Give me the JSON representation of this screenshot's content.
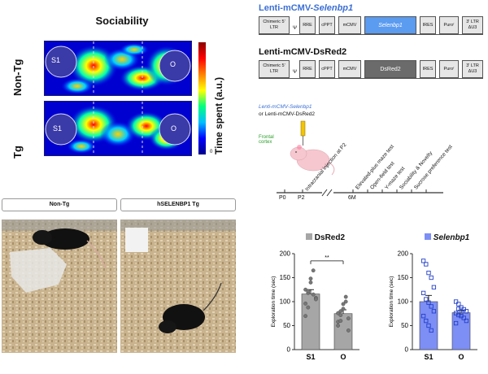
{
  "heatmap": {
    "title": "Sociability",
    "rows": [
      {
        "label": "Non-Tg",
        "left_zone": "S1",
        "right_zone": "O"
      },
      {
        "label": "Tg",
        "left_zone": "S1",
        "right_zone": "O"
      }
    ],
    "colorbar_label": "Time spent (a.u.)",
    "colorbar_min": "0",
    "colors": [
      "#00008b",
      "#0000ff",
      "#00bfff",
      "#00ff80",
      "#ffff00",
      "#ff8000",
      "#ff0000",
      "#8b0000"
    ]
  },
  "vectors": [
    {
      "title_prefix": "Lenti-mCMV-",
      "title_gene": "Selenbp1",
      "title_color": "#3b6fd4",
      "elements": [
        "Chimeric 5' LTR",
        "Ψ",
        "RRE",
        "cPPT",
        "mCMV",
        "Selenbp1",
        "IRES",
        "Puroʳ",
        "3' LTR ΔU3"
      ],
      "insert_color": "#5b9bf0"
    },
    {
      "title_prefix": "Lenti-mCMV-DsRed2",
      "title_gene": "",
      "title_color": "#111111",
      "elements": [
        "Chimeric 5' LTR",
        "Ψ",
        "RRE",
        "cPPT",
        "mCMV",
        "DsRed2",
        "IRES",
        "Puroʳ",
        "3' LTR ΔU3"
      ],
      "insert_color": "#6b6b6b"
    }
  ],
  "timeline": {
    "virus_line1": "Lenti-mCMV-Selenbp1",
    "virus_line2": "or Lenti-mCMV-DsRed2",
    "injection_site": "Frontal cortex",
    "ticks": [
      "P0",
      "P2",
      "6M"
    ],
    "events": [
      "Intracranial injection at P2",
      "Elevated-plus maze test",
      "Open-field test",
      "Y-maze test",
      "Sociability & Novelty",
      "Sucrose preference test"
    ]
  },
  "photos": {
    "labels": [
      "Non-Tg",
      "hSELENBP1 Tg"
    ]
  },
  "chart_data": [
    {
      "type": "bar",
      "legend": "DsRed2",
      "color": "#a6a6a6",
      "categories": [
        "S1",
        "O"
      ],
      "values": [
        116,
        75
      ],
      "errors": [
        9,
        8
      ],
      "ylabel": "Exploration time (sec)",
      "ylim": [
        0,
        200
      ],
      "yticks": [
        0,
        50,
        100,
        150,
        200
      ],
      "significance": "**",
      "points": [
        [
          96,
          118,
          148,
          165,
          108,
          125,
          88,
          140,
          115,
          105,
          70,
          122
        ],
        [
          58,
          80,
          95,
          110,
          65,
          50,
          72,
          85,
          100,
          40,
          76,
          60
        ]
      ]
    },
    {
      "type": "bar",
      "legend": "Selenbp1",
      "color": "#7d8ef5",
      "categories": [
        "S1",
        "O"
      ],
      "values": [
        100,
        77
      ],
      "errors": [
        13,
        5
      ],
      "ylabel": "Exploration time (sec)",
      "ylim": [
        0,
        200
      ],
      "yticks": [
        0,
        50,
        100,
        150,
        200
      ],
      "significance": "",
      "points": [
        [
          185,
          178,
          160,
          150,
          130,
          118,
          105,
          98,
          90,
          80,
          70,
          60,
          50,
          40
        ],
        [
          100,
          95,
          88,
          84,
          80,
          76,
          72,
          70,
          66,
          60,
          55,
          85,
          78
        ]
      ]
    }
  ]
}
